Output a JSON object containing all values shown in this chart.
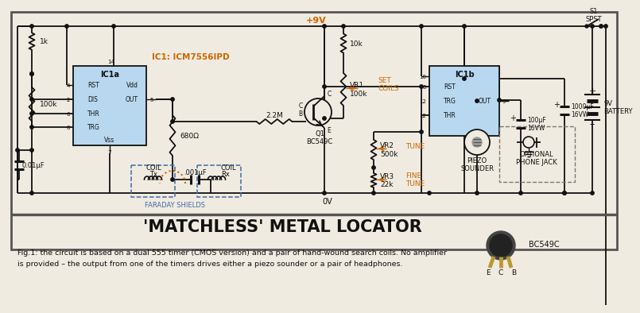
{
  "bg_color": "#f0ebe0",
  "wire_color": "#111111",
  "orange_color": "#cc6600",
  "blue_color": "#4466aa",
  "ic_color": "#b8d8f0",
  "title": "'MATCHLESS' METAL LOCATOR",
  "caption_line1": "Fig.1: the circuit is based on a dual 555 timer (CMOS version) and a pair of hand-wound search coils. No amplifier",
  "caption_line2": "is provided – the output from one of the timers drives either a piezo sounder or a pair of headphones.",
  "plus9v": "+9V",
  "gnd": "0V",
  "ic_label": "IC1: ICM7556IPD",
  "ic1a": "IC1a",
  "ic1b": "IC1b",
  "r1": "1k",
  "r2": "100k",
  "r3": "680Ω",
  "r4": "10k",
  "r5": "2.2M",
  "c1": "0.01μF",
  "c2": ".001μF",
  "c3": "100μF\n16VW",
  "c4": "1000μF\n16VW",
  "vr1": "VR1\n100k",
  "vr2": "VR2\n500k",
  "vr3": "VR3\n22k",
  "set_coils": "SET\nCOILS",
  "tune": "TUNE",
  "fine_tune": "FINE\nTUNE",
  "tx_coil": "Tx\nCOIL",
  "rx_coil": "Rx\nCOIL",
  "faraday": "FARADAY SHIELDS",
  "q1": "Q1\nBC549C",
  "piezo": "PIEZO\nSOUNDER",
  "phone_jack": "OPTIONAL\nPHONE JACK",
  "s1": "S1\nSPST",
  "battery": "9V\nBATTERY",
  "bc549c": "BC549C"
}
